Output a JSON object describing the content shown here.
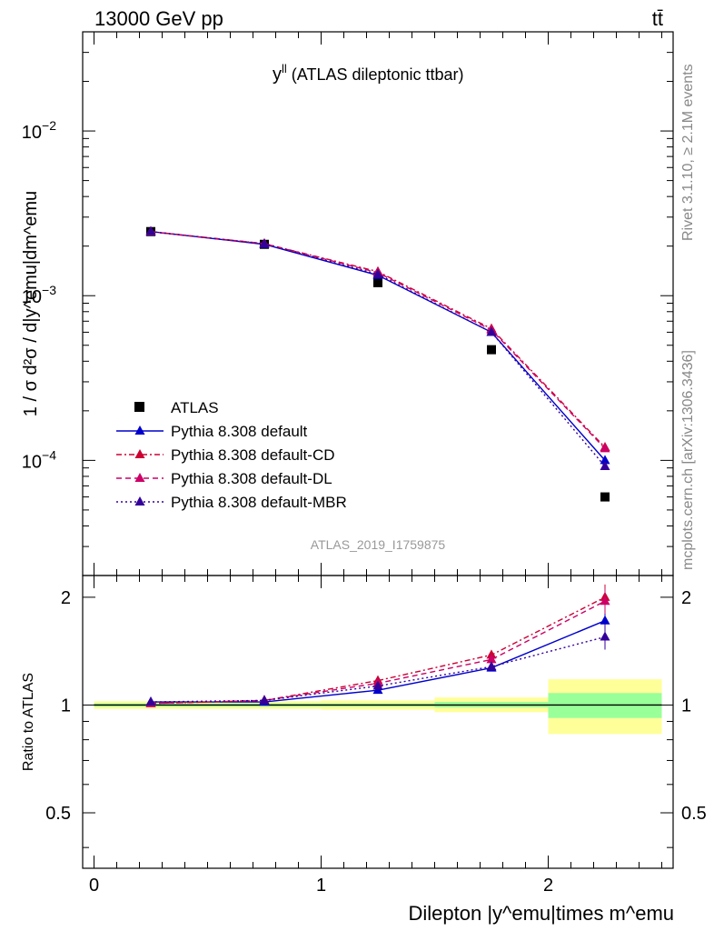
{
  "header": {
    "energy_label": "13000 GeV pp",
    "process_label": "tt̄",
    "rivet_label": "Rivet 3.1.10, ≥ 2.1M events",
    "mcplots_label": "mcplots.cern.ch [arXiv:1306.3436]"
  },
  "chart_data": [
    {
      "type": "line",
      "title": "y",
      "title_superscript": "ll",
      "subtitle": "(ATLAS dileptonic ttbar)",
      "ylabel": "1 / σ d²σ / d|y^emu|dm^emu",
      "analysis_id": "ATLAS_2019_I1759875",
      "yscale": "log",
      "xlim": [
        -0.05,
        2.55
      ],
      "ylim": [
        2e-05,
        0.04
      ],
      "x": [
        0.25,
        0.75,
        1.25,
        1.75,
        2.25
      ],
      "yticks": [
        {
          "value": 0.0001,
          "base": "10",
          "exp": "−4"
        },
        {
          "value": 0.001,
          "base": "10",
          "exp": "−3"
        },
        {
          "value": 0.01,
          "base": "10",
          "exp": "−2"
        }
      ],
      "legend_position": "bottom-left",
      "series": [
        {
          "name": "ATLAS",
          "style": "data",
          "color": "#000000",
          "values": [
            0.00245,
            0.00205,
            0.0012,
            0.00047,
            6e-05
          ]
        },
        {
          "name": "Pythia 8.308 default",
          "style": "solid",
          "color": "#0000cc",
          "values": [
            0.00245,
            0.00205,
            0.00133,
            0.0006,
            0.0001
          ]
        },
        {
          "name": "Pythia 8.308 default-CD",
          "style": "dashdot",
          "color": "#cc0033",
          "values": [
            0.00245,
            0.00207,
            0.0014,
            0.00063,
            0.00012
          ]
        },
        {
          "name": "Pythia 8.308 default-DL",
          "style": "dashed",
          "color": "#cc0066",
          "values": [
            0.00244,
            0.00207,
            0.00138,
            0.00062,
            0.000118
          ]
        },
        {
          "name": "Pythia 8.308 default-MBR",
          "style": "dotted",
          "color": "#330099",
          "values": [
            0.00245,
            0.00206,
            0.00135,
            0.0006,
            9.2e-05
          ]
        }
      ]
    },
    {
      "type": "line",
      "ylabel": "Ratio to ATLAS",
      "xlabel": "Dilepton |y^emu|times m^emu",
      "xlim": [
        -0.05,
        2.55
      ],
      "ylim": [
        0.35,
        2.3
      ],
      "xticks": [
        0,
        1,
        2
      ],
      "yticks": [
        0.5,
        1,
        2
      ],
      "x": [
        0.25,
        0.75,
        1.25,
        1.75,
        2.25
      ],
      "bands": [
        {
          "x0": 0,
          "x1": 1,
          "inner": [
            0.99,
            1.01
          ],
          "outer": [
            0.975,
            1.025
          ]
        },
        {
          "x0": 1,
          "x1": 1.5,
          "inner": [
            0.99,
            1.01
          ],
          "outer": [
            0.97,
            1.03
          ]
        },
        {
          "x0": 1.5,
          "x1": 2,
          "inner": [
            0.985,
            1.02
          ],
          "outer": [
            0.955,
            1.05
          ]
        },
        {
          "x0": 2,
          "x1": 2.5,
          "inner": [
            0.92,
            1.08
          ],
          "outer": [
            0.83,
            1.18
          ]
        }
      ],
      "series": [
        {
          "name": "Pythia 8.308 default",
          "color": "#0000cc",
          "values": [
            1.02,
            1.02,
            1.1,
            1.27,
            1.72
          ]
        },
        {
          "name": "Pythia 8.308 default-CD",
          "color": "#cc0033",
          "values": [
            1.01,
            1.03,
            1.17,
            1.38,
            2.0
          ]
        },
        {
          "name": "Pythia 8.308 default-DL",
          "color": "#cc0066",
          "values": [
            1.01,
            1.03,
            1.15,
            1.34,
            1.95
          ]
        },
        {
          "name": "Pythia 8.308 default-MBR",
          "color": "#330099",
          "values": [
            1.02,
            1.03,
            1.13,
            1.28,
            1.55
          ]
        }
      ]
    }
  ]
}
